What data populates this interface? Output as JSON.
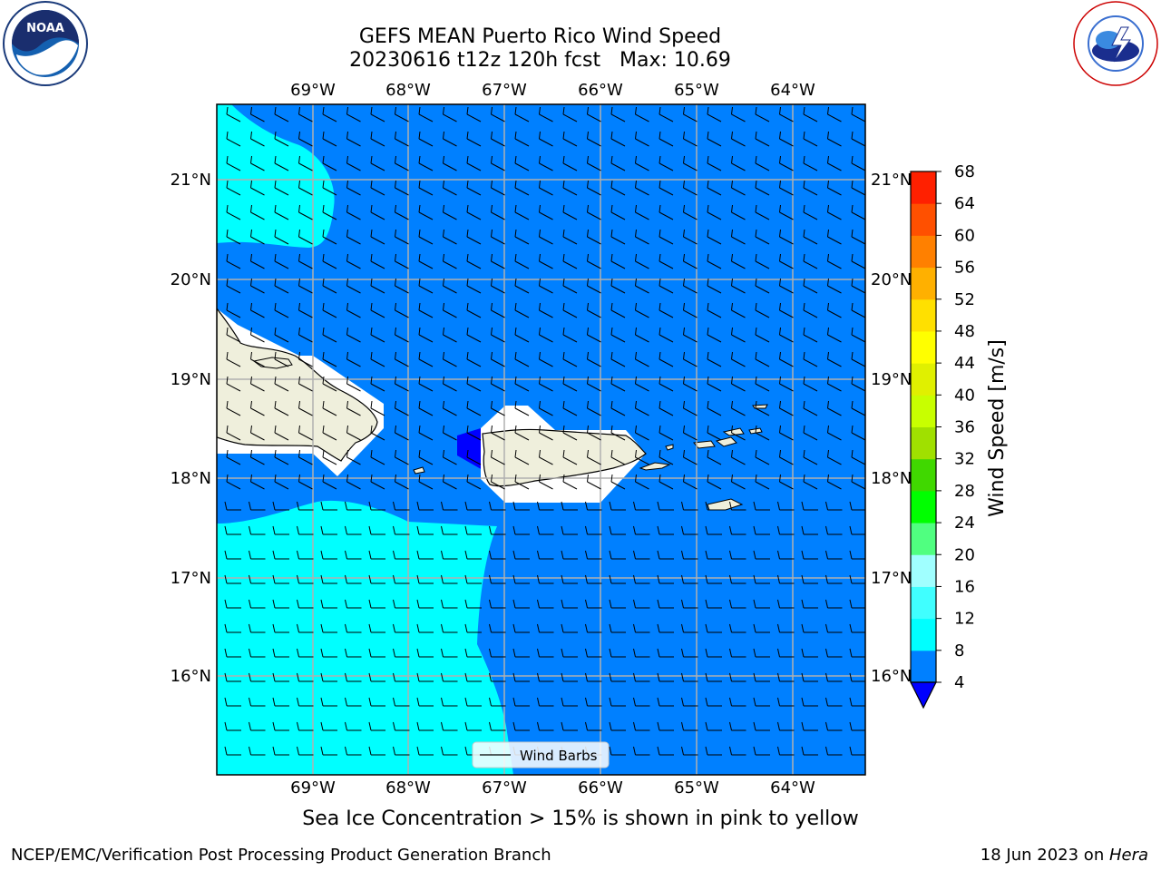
{
  "title_line1": "GEFS MEAN Puerto Rico Wind Speed",
  "title_line2": "20230616 t12z 120h fcst   Max: 10.69",
  "logos": {
    "left": "noara-logo",
    "right": "nws-logo"
  },
  "longitude_labels": [
    "69°W",
    "68°W",
    "67°W",
    "66°W",
    "65°W",
    "64°W"
  ],
  "latitude_labels": [
    "21°N",
    "20°N",
    "19°N",
    "18°N",
    "17°N",
    "16°N"
  ],
  "legend": {
    "label": "Wind Barbs"
  },
  "colorbar": {
    "label": "Wind Speed [m/s]",
    "ticks": [
      "68",
      "64",
      "60",
      "56",
      "52",
      "48",
      "44",
      "40",
      "36",
      "32",
      "28",
      "24",
      "20",
      "16",
      "12",
      "8",
      "4"
    ],
    "colors": [
      "#0000ff",
      "#0080ff",
      "#00ffff",
      "#40ffff",
      "#a0ffff",
      "#50ff80",
      "#00ff00",
      "#40d800",
      "#a0e000",
      "#c8ff00",
      "#e0f000",
      "#ffff00",
      "#ffe000",
      "#ffb000",
      "#ff8000",
      "#ff5000",
      "#ff2000",
      "#ff0000"
    ]
  },
  "field_colors": {
    "4-8": "#0080ff",
    "8-12": "#00ffff",
    "below-4": "#0000ff",
    "land": "#efefdc"
  },
  "caption": "Sea Ice Concentration > 15% is shown in pink to yellow",
  "footer_left": "NCEP/EMC/Verification Post Processing Product Generation Branch",
  "footer_right_prefix": "18 Jun 2023 on ",
  "footer_right_machine": "Hera"
}
